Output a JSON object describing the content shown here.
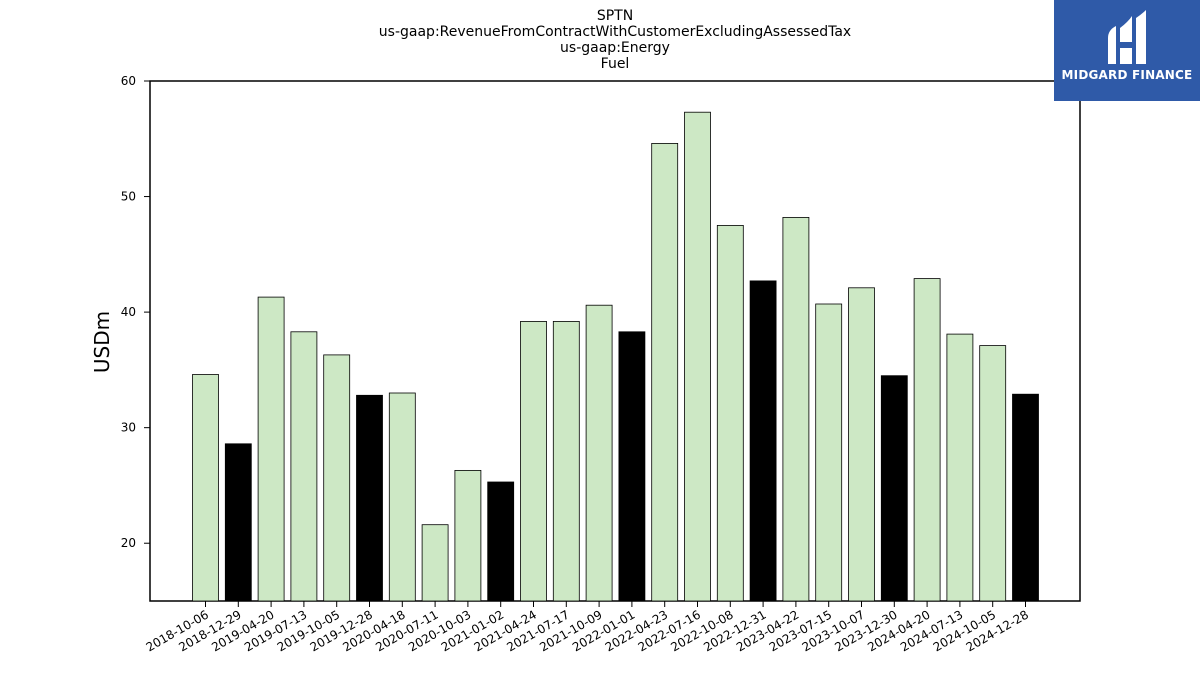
{
  "chart_data": {
    "type": "bar",
    "title_lines": [
      "SPTN",
      "us-gaap:RevenueFromContractWithCustomerExcludingAssessedTax",
      "us-gaap:Energy",
      "Fuel"
    ],
    "ylabel": "USDm",
    "xlabel": "",
    "ylim": [
      15,
      60
    ],
    "yticks": [
      20,
      30,
      40,
      50,
      60
    ],
    "categories": [
      "2018-10-06",
      "2018-12-29",
      "2019-04-20",
      "2019-07-13",
      "2019-10-05",
      "2019-12-28",
      "2020-04-18",
      "2020-07-11",
      "2020-10-03",
      "2021-01-02",
      "2021-04-24",
      "2021-07-17",
      "2021-10-09",
      "2022-01-01",
      "2022-04-23",
      "2022-07-16",
      "2022-10-08",
      "2022-12-31",
      "2023-04-22",
      "2023-07-15",
      "2023-10-07",
      "2023-12-30",
      "2024-04-20",
      "2024-07-13",
      "2024-10-05",
      "2024-12-28"
    ],
    "values": [
      34.6,
      28.6,
      41.3,
      38.3,
      36.3,
      32.8,
      33.0,
      21.6,
      26.3,
      25.3,
      39.2,
      39.2,
      40.6,
      38.3,
      54.6,
      57.3,
      47.5,
      42.7,
      48.2,
      40.7,
      42.1,
      34.5,
      42.9,
      38.1,
      37.1,
      32.9
    ],
    "period_type": [
      "quarter",
      "year",
      "quarter",
      "quarter",
      "quarter",
      "year",
      "quarter",
      "quarter",
      "quarter",
      "year",
      "quarter",
      "quarter",
      "quarter",
      "year",
      "quarter",
      "quarter",
      "quarter",
      "year",
      "quarter",
      "quarter",
      "quarter",
      "year",
      "quarter",
      "quarter",
      "quarter",
      "year"
    ],
    "colors": {
      "quarter": "#cde8c5",
      "year": "#000000",
      "edge": "#000000"
    },
    "grid": false,
    "legend": "none"
  },
  "logo": {
    "text": "MIDGARD FINANCE",
    "background": "#2f5aa8"
  }
}
